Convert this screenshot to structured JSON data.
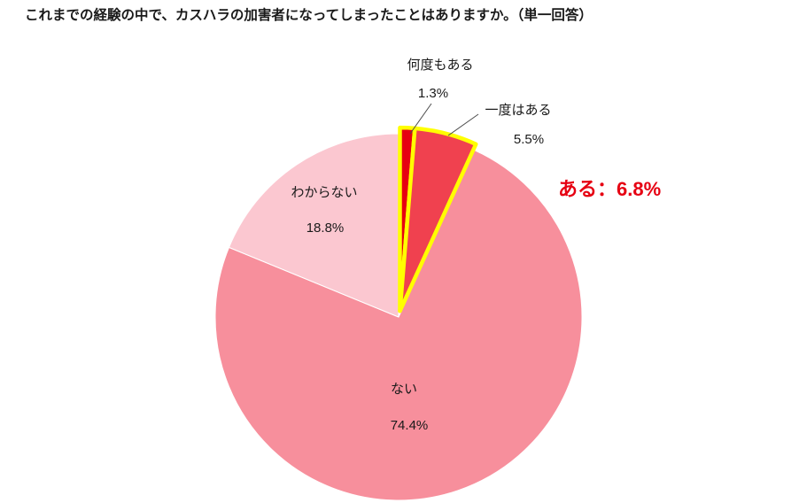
{
  "page": {
    "background": "#ffffff"
  },
  "chart_data": {
    "type": "pie",
    "title": "これまでの経験の中で、カスハラの加害者になってしまったことはありますか。（単一回答）",
    "unit": "%",
    "direction": "clockwise",
    "start_angle_deg": 0,
    "slices": [
      {
        "label": "何度もある",
        "value": 1.3,
        "color": "#e60012",
        "highlight": true,
        "label_placement": "outside"
      },
      {
        "label": "一度はある",
        "value": 5.5,
        "color": "#f0414f",
        "highlight": true,
        "label_placement": "outside"
      },
      {
        "label": "ない",
        "value": 74.4,
        "color": "#f78f9c",
        "highlight": false,
        "label_placement": "inside"
      },
      {
        "label": "わからない",
        "value": 18.8,
        "color": "#fbc7d0",
        "highlight": false,
        "label_placement": "inside"
      }
    ],
    "annotation": {
      "text": "ある：6.8%",
      "color": "#e60012"
    },
    "highlight_stroke": "#ffff00",
    "legend": "none",
    "grid": false
  }
}
